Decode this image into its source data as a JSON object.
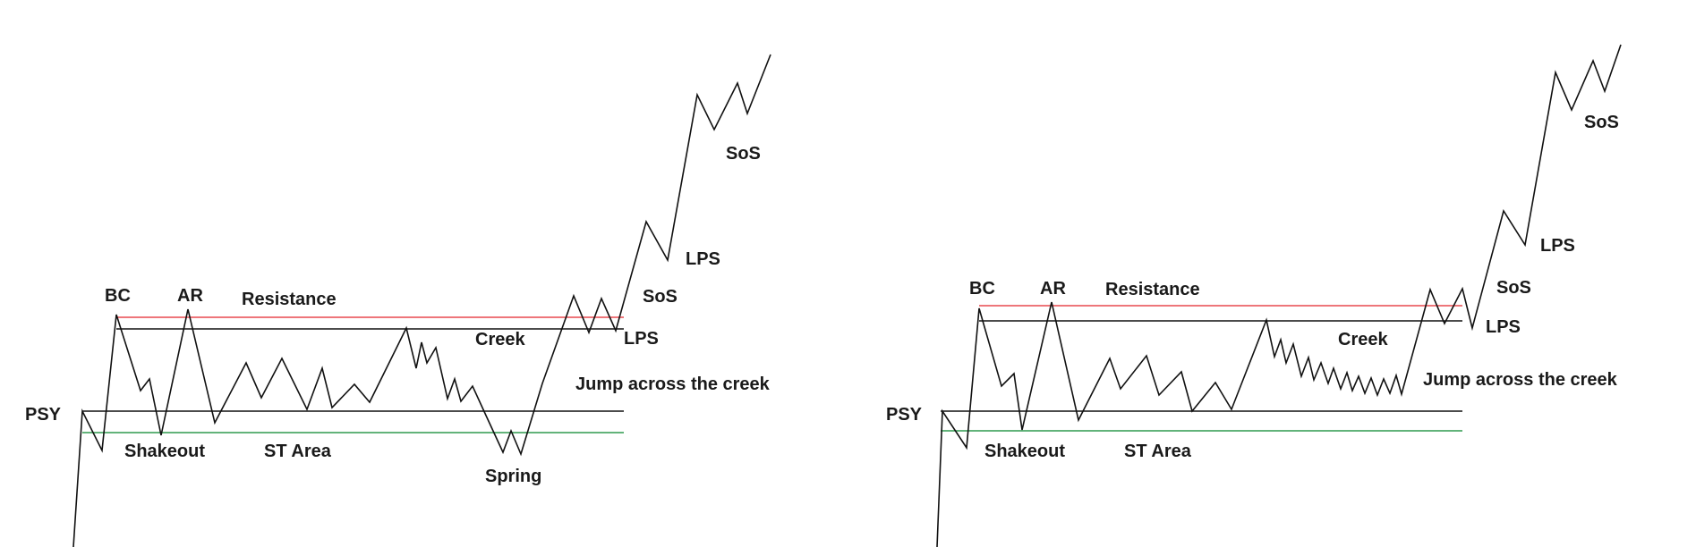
{
  "colors": {
    "resistance": "#e8484f",
    "creek": "#111111",
    "support": "#111111",
    "spring_level": "#2e9a4e",
    "price": "#111111"
  },
  "left_diagram": {
    "labels": {
      "bc": "BC",
      "ar": "AR",
      "resistance": "Resistance",
      "creek": "Creek",
      "psy": "PSY",
      "shakeout": "Shakeout",
      "st_area": "ST Area",
      "spring": "Spring",
      "jump": "Jump across the creek",
      "lps_low": "LPS",
      "sos_low": "SoS",
      "lps_high": "LPS",
      "sos_high": "SoS"
    }
  },
  "right_diagram": {
    "labels": {
      "bc": "BC",
      "ar": "AR",
      "resistance": "Resistance",
      "creek": "Creek",
      "psy": "PSY",
      "shakeout": "Shakeout",
      "st_area": "ST Area",
      "jump": "Jump across the creek",
      "lps_low": "LPS",
      "sos_low": "SoS",
      "lps_high": "LPS",
      "sos_high": "SoS"
    }
  }
}
